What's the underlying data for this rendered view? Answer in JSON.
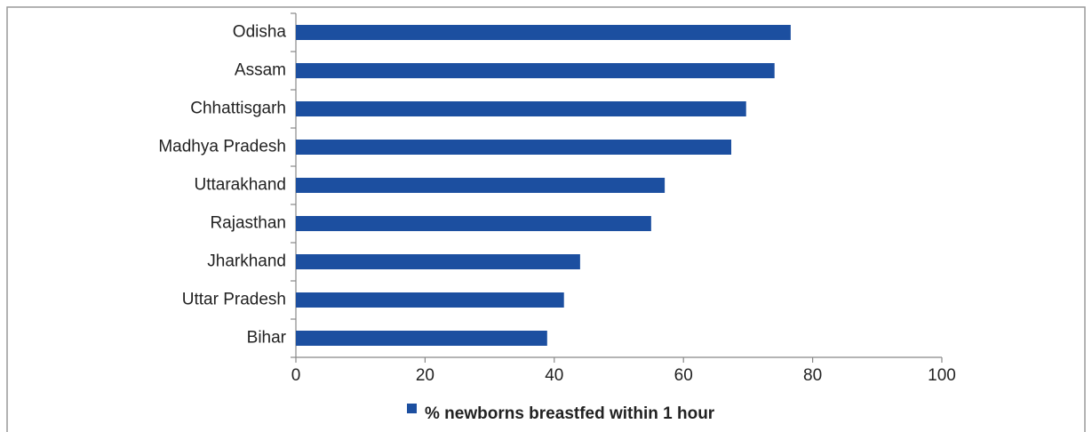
{
  "chart_data": {
    "type": "bar",
    "orientation": "horizontal",
    "categories": [
      "Odisha",
      "Assam",
      "Chhattisgarh",
      "Madhya Pradesh",
      "Uttarakhand",
      "Rajasthan",
      "Jharkhand",
      "Uttar Pradesh",
      "Bihar"
    ],
    "series": [
      {
        "name": "% newborns breastfed within 1 hour",
        "color": "#1c4fa0",
        "values": [
          76.6,
          74.1,
          69.7,
          67.4,
          57.1,
          55,
          44,
          41.5,
          38.9
        ]
      }
    ],
    "xlim": [
      0,
      100
    ],
    "xticks": [
      0,
      20,
      40,
      60,
      80,
      100
    ],
    "grid": false,
    "legend": "bottom"
  }
}
